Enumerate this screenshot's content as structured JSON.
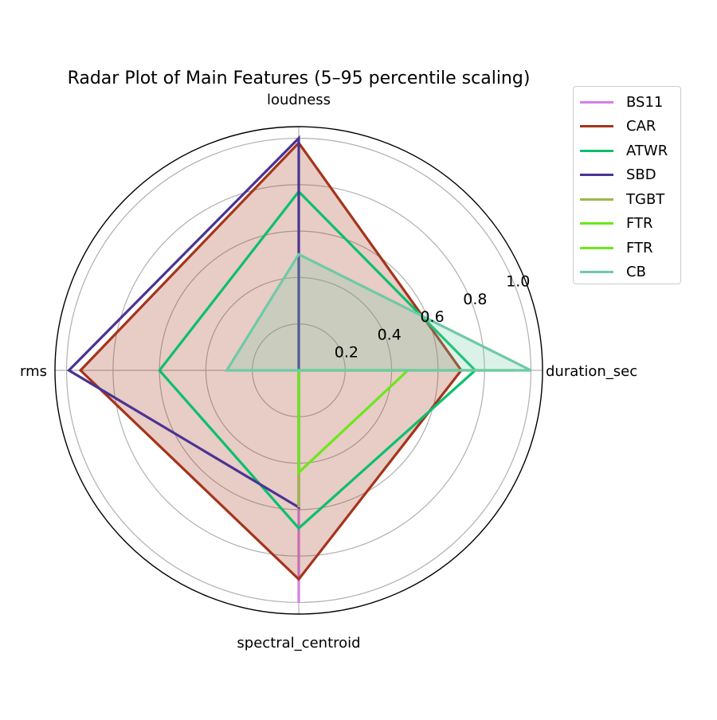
{
  "chart_data": {
    "type": "radar",
    "title": "Radar Plot of Main Features (5–95 percentile scaling)",
    "axes": [
      "duration_sec",
      "loudness",
      "rms",
      "spectral_centroid"
    ],
    "r_ticks": [
      "0.2",
      "0.4",
      "0.6",
      "0.8",
      "1.0"
    ],
    "rlim": [
      0,
      1.05
    ],
    "grid": true,
    "legend_position": "upper-right-outside",
    "series": [
      {
        "name": "BS11",
        "color": "#d47ee8",
        "fill": true,
        "values": [
          0.0,
          0.0,
          0.0,
          1.0
        ]
      },
      {
        "name": "CAR",
        "color": "#a5341b",
        "fill": true,
        "values": [
          0.7,
          0.98,
          0.94,
          0.9
        ]
      },
      {
        "name": "ATWR",
        "color": "#0cbf6e",
        "fill": false,
        "values": [
          0.76,
          0.77,
          0.6,
          0.68
        ]
      },
      {
        "name": "SBD",
        "color": "#4b3393",
        "fill": false,
        "values": [
          0.0,
          1.0,
          0.99,
          0.59
        ]
      },
      {
        "name": "TGBT",
        "color": "#9cb84a",
        "fill": false,
        "values": [
          0.0,
          0.0,
          0.0,
          0.59
        ]
      },
      {
        "name": "FTR",
        "color": "#6ae81a",
        "fill": false,
        "values": [
          0.93,
          0.0,
          0.0,
          0.0
        ]
      },
      {
        "name": "FTR",
        "color": "#6ae81a",
        "fill": false,
        "values": [
          0.47,
          0.0,
          0.0,
          0.44
        ]
      },
      {
        "name": "CB",
        "color": "#6ecaa6",
        "fill": true,
        "values": [
          1.0,
          0.5,
          0.31,
          0.0
        ]
      }
    ]
  }
}
